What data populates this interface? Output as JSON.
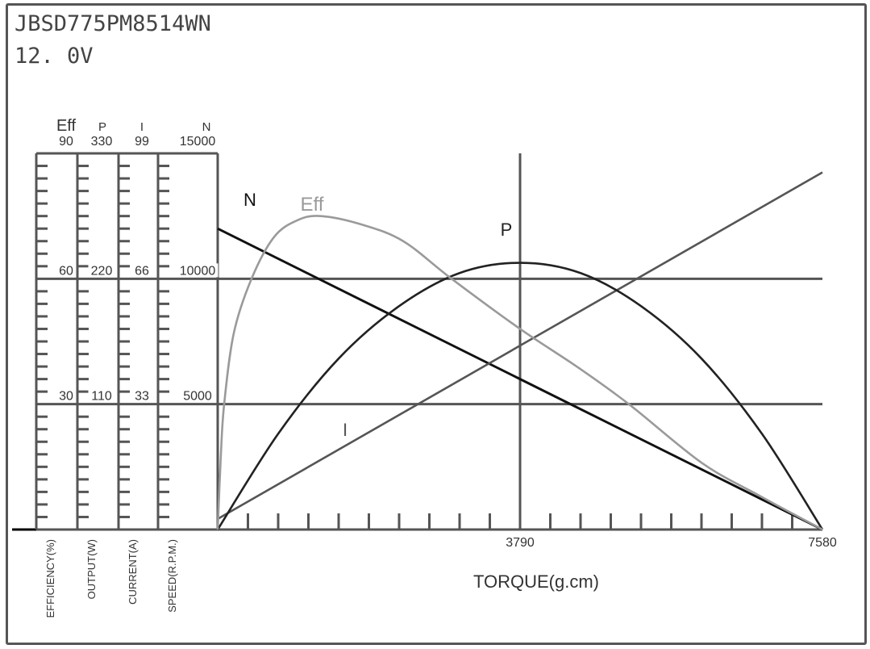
{
  "header": {
    "model": "JBSD775PM8514WN",
    "voltage": "12. 0V"
  },
  "chart_data": {
    "type": "line",
    "xlabel": "TORQUE(g.cm)",
    "xlim": [
      0,
      7580
    ],
    "x_ticks": [
      "3790",
      "7580"
    ],
    "grid": true,
    "axes": [
      {
        "key": "eff",
        "header": "Eff",
        "label": "EFFICIENCY(%)",
        "max": 90,
        "ticks": [
          "90",
          "60",
          "30"
        ]
      },
      {
        "key": "p",
        "header": "P",
        "label": "OUTPUT(W)",
        "max": 330,
        "ticks": [
          "330",
          "220",
          "110"
        ]
      },
      {
        "key": "i",
        "header": "I",
        "label": "CURRENT(A)",
        "max": 99,
        "ticks": [
          "99",
          "66",
          "33"
        ]
      },
      {
        "key": "n",
        "header": "N",
        "label": "SPEED(R.P.M.)",
        "max": 15000,
        "ticks": [
          "15000",
          "10000",
          "5000"
        ]
      }
    ],
    "series": [
      {
        "name": "N",
        "axis": "n",
        "color": "#111111",
        "x": [
          0,
          7580
        ],
        "y": [
          12000,
          0
        ]
      },
      {
        "name": "I",
        "axis": "i",
        "color": "#555555",
        "x": [
          0,
          7580
        ],
        "y": [
          2.8,
          94
        ]
      },
      {
        "name": "P",
        "axis": "p",
        "color": "#222222",
        "x": [
          0,
          758,
          1516,
          2274,
          3032,
          3790,
          4548,
          5306,
          6064,
          6822,
          7580
        ],
        "y": [
          0,
          84,
          150,
          196,
          225,
          234,
          225,
          196,
          150,
          84,
          0
        ]
      },
      {
        "name": "Eff",
        "axis": "eff",
        "color": "#9a9a9a",
        "x": [
          0,
          40,
          81,
          202,
          424,
          707,
          1000,
          1294,
          1800,
          2325,
          2931,
          3790,
          4500,
          5154,
          6064,
          6800,
          7580
        ],
        "y": [
          0,
          18,
          30,
          47,
          60,
          70,
          74,
          75,
          73,
          69,
          60,
          48,
          39,
          30,
          16,
          8,
          0
        ]
      }
    ]
  }
}
